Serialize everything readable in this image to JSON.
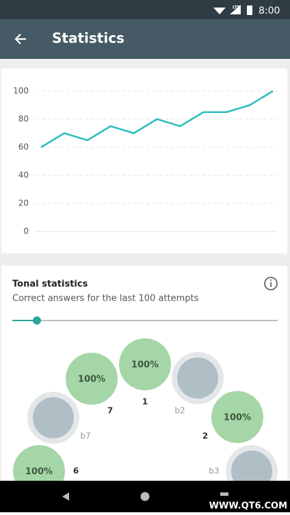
{
  "status_bar": {
    "network": "LTE",
    "time": "8:00"
  },
  "app_bar": {
    "title": "Statistics"
  },
  "chart_data": {
    "type": "line",
    "values": [
      60,
      70,
      65,
      75,
      70,
      80,
      75,
      85,
      85,
      90,
      100
    ],
    "color": "#2dbdbd",
    "ylim": [
      0,
      100
    ],
    "yticks": [
      0,
      20,
      40,
      60,
      80,
      100
    ],
    "grid": true
  },
  "tonal": {
    "title": "Tonal statistics",
    "subtitle": "Correct answers for the last 100 attempts",
    "labels": [
      "6",
      "b7",
      "7",
      "1",
      "b2",
      "2",
      "b3"
    ],
    "values": [
      100,
      null,
      100,
      100,
      null,
      100,
      null
    ],
    "value_labels": [
      "100%",
      null,
      "100%",
      "100%",
      null,
      "100%",
      null
    ]
  },
  "watermark": "WWW.QT6.COM"
}
